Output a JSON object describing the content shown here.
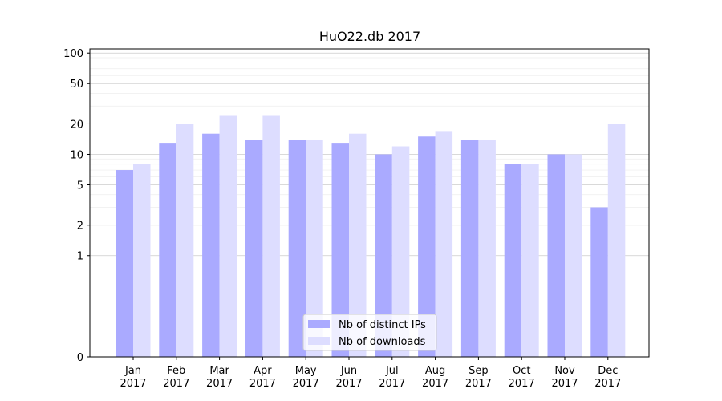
{
  "chart_data": {
    "type": "bar",
    "title": "HuO22.db 2017",
    "xlabel": "",
    "ylabel": "",
    "y_scale": "symlog",
    "ylim": [
      0,
      110
    ],
    "y_ticks": [
      0,
      1,
      2,
      5,
      10,
      20,
      50,
      100
    ],
    "y_tick_labels": [
      "0",
      "1",
      "2",
      "5",
      "10",
      "20",
      "50",
      "100"
    ],
    "grid": true,
    "legend_position": "bottom-center",
    "categories": [
      "Jan",
      "Feb",
      "Mar",
      "Apr",
      "May",
      "Jun",
      "Jul",
      "Aug",
      "Sep",
      "Oct",
      "Nov",
      "Dec"
    ],
    "category_sublabels": [
      "2017",
      "2017",
      "2017",
      "2017",
      "2017",
      "2017",
      "2017",
      "2017",
      "2017",
      "2017",
      "2017",
      "2017"
    ],
    "series": [
      {
        "name": "Nb of distinct IPs",
        "color": "#aaaaff",
        "values": [
          7,
          13,
          16,
          14,
          14,
          13,
          10,
          15,
          14,
          8,
          10,
          3
        ]
      },
      {
        "name": "Nb of downloads",
        "color": "#ddddff",
        "values": [
          8,
          20,
          24,
          24,
          14,
          16,
          12,
          17,
          14,
          8,
          10,
          20
        ]
      }
    ]
  }
}
